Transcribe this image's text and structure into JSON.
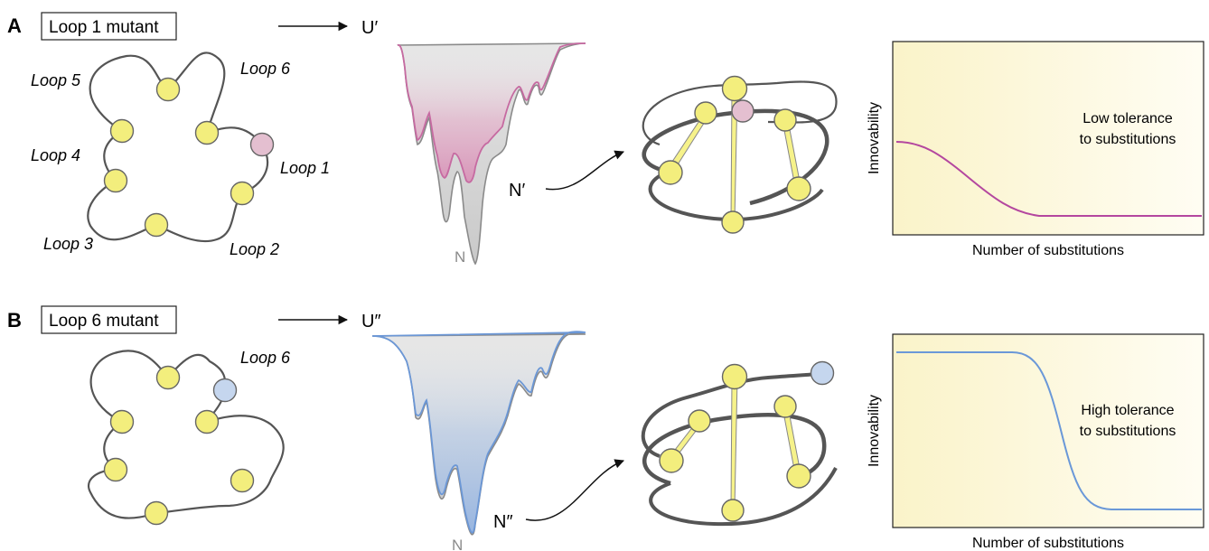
{
  "panel_a": {
    "letter": "A",
    "mutant_label": "Loop 1 mutant",
    "unfolded_label": "U′",
    "native_label": "N",
    "mutant_native_label": "N′",
    "loops": [
      "Loop 5",
      "Loop 6",
      "Loop 4",
      "Loop 1",
      "Loop 3",
      "Loop 2"
    ],
    "mutant_color": "#e4bfd0",
    "landscape_color": "#c66aa1",
    "chart": {
      "ylabel": "Innovability",
      "xlabel": "Number of substitutions",
      "annotation": [
        "Low tolerance",
        "to substitutions"
      ],
      "line_color": "#b4479f"
    }
  },
  "panel_b": {
    "letter": "B",
    "mutant_label": "Loop 6 mutant",
    "unfolded_label": "U″",
    "native_label": "N",
    "mutant_native_label": "N″",
    "loops": [
      "Loop 6"
    ],
    "mutant_color": "#c5d6ee",
    "landscape_color": "#6b97d6",
    "chart": {
      "ylabel": "Innovability",
      "xlabel": "Number of substitutions",
      "annotation": [
        "High tolerance",
        "to substitutions"
      ],
      "line_color": "#6a98d8"
    }
  },
  "residue_color": "#f3ee7d"
}
